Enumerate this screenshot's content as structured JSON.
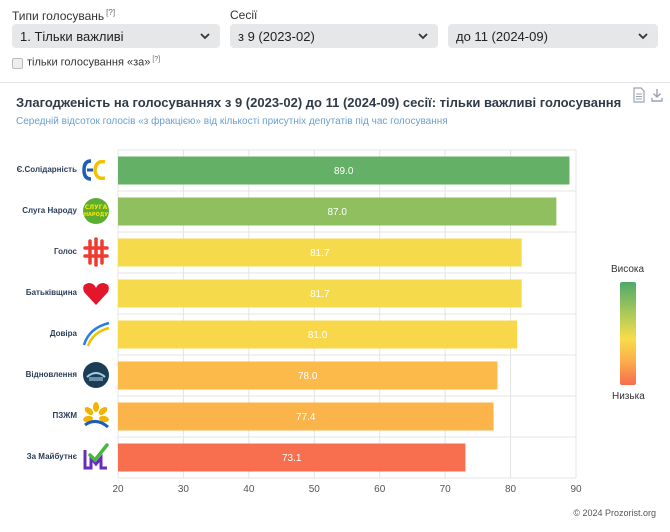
{
  "filters": {
    "vote_types": {
      "label": "Типи голосувань",
      "note": "[?]",
      "value": "1. Тільки важливі"
    },
    "sessions": {
      "label": "Сесії",
      "from_value": "з 9 (2023-02)",
      "to_value": "до 11 (2024-09)"
    },
    "only_for": {
      "label": "тільки голосування «за»",
      "note": "[?]",
      "checked": false
    }
  },
  "colors": {
    "high": "#4fa86a",
    "mid": "#f9dc4a",
    "low": "#f76d4e",
    "title": "#2f3b47",
    "subtitle": "#6a9fd0"
  },
  "icons": {
    "dropdown": "chevron-down-icon",
    "download_doc": "document-icon",
    "download": "download-icon"
  },
  "chart_data": {
    "type": "bar",
    "orientation": "horizontal",
    "title": "Злагодженість на голосуваннях з 9 (2023-02) до 11 (2024-09) сесії: тільки важливі голосування",
    "subtitle": "Середній відсоток голосів «з фракцією» від кількості присутніх депутатів під час голосування",
    "categories": [
      "Є.Солідарність",
      "Слуга Народу",
      "Голос",
      "Батьківщина",
      "Довіра",
      "Відновлення",
      "ПЗЖМ",
      "За Майбутнє"
    ],
    "values": [
      89.0,
      87.0,
      81.7,
      81.7,
      81.0,
      78.0,
      77.4,
      73.1
    ],
    "value_labels": [
      "89.0",
      "87.0",
      "81.7",
      "81.7",
      "81.0",
      "78.0",
      "77.4",
      "73.1"
    ],
    "xlim": [
      20,
      90
    ],
    "xticks": [
      20,
      30,
      40,
      50,
      60,
      70,
      80,
      90
    ],
    "grid": true,
    "legend": {
      "high_label": "Висока",
      "low_label": "Низька",
      "placement": "right"
    },
    "colorscale": [
      "#f76d4e",
      "#fbb34a",
      "#f9dc4a",
      "#a9c95a",
      "#4fa86a"
    ]
  },
  "footer": {
    "credit": "© 2024 Prozorist.org"
  }
}
